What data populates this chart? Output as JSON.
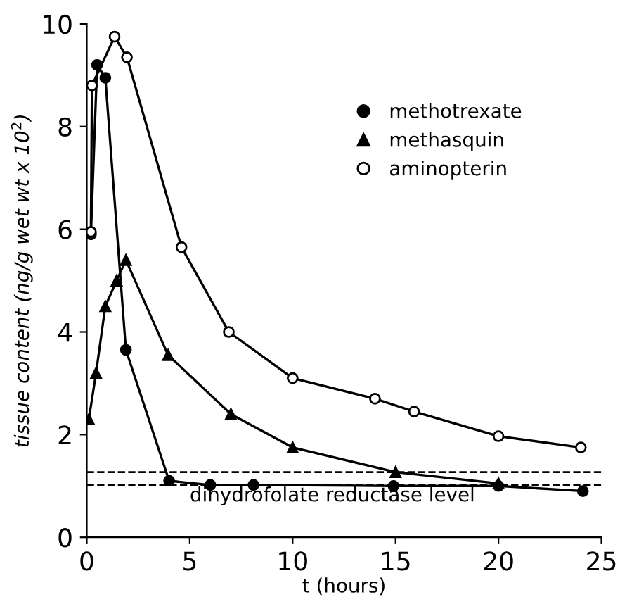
{
  "chart_data": {
    "type": "line",
    "xlabel": "t (hours)",
    "ylabel": "tissue content (ng/g wet wt x 10$^{2}$)",
    "xlim": [
      0,
      25
    ],
    "ylim": [
      0,
      10
    ],
    "xticks": [
      0,
      5,
      10,
      15,
      20,
      25
    ],
    "yticks": [
      0,
      2,
      4,
      6,
      8,
      10
    ],
    "grid": false,
    "legend": "top right",
    "line_style": "solid",
    "series": [
      {
        "name": "methotrexate",
        "color": "#000000",
        "marker": "circle",
        "x": [
          0.2,
          0.5,
          0.9,
          1.9,
          4,
          6,
          8.1,
          14.9,
          20,
          24.1
        ],
        "values": [
          5.9,
          9.2,
          8.95,
          3.65,
          1.1,
          1.02,
          1.02,
          1.0,
          1.0,
          0.9
        ]
      },
      {
        "name": "methasquin",
        "color": "#000000",
        "marker": "triangle",
        "x": [
          0.1,
          0.45,
          0.9,
          1.45,
          1.9,
          3.95,
          7,
          10,
          15,
          20
        ],
        "values": [
          2.3,
          3.2,
          4.5,
          5.0,
          5.4,
          3.55,
          2.4,
          1.75,
          1.27,
          1.05
        ]
      },
      {
        "name": "aminopterin",
        "color": "#000000",
        "marker": "circle",
        "x": [
          0.2,
          0.25,
          1.35,
          1.95,
          4.6,
          6.9,
          10,
          14,
          15.9,
          20,
          24
        ],
        "values": [
          5.95,
          8.8,
          9.75,
          9.35,
          5.65,
          4.0,
          3.1,
          2.7,
          2.45,
          1.97,
          1.75
        ]
      }
    ],
    "ref_lines": [
      {
        "axis": "y",
        "value": 1.27,
        "label": "dihydrofolate reductase level",
        "color": "#000000",
        "line_style": "dashed"
      },
      {
        "axis": "y",
        "value": 1.02,
        "color": "#000000",
        "line_style": "dashed"
      }
    ]
  }
}
